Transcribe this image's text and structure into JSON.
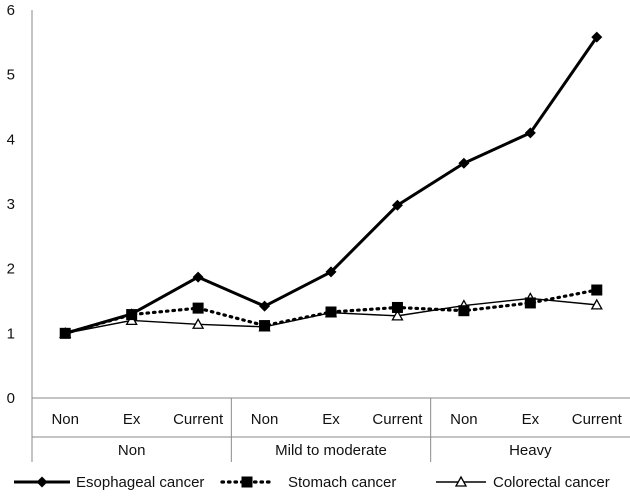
{
  "chart_data": {
    "type": "line",
    "title": "",
    "xlabel": "",
    "ylabel": "",
    "ylim": [
      0,
      6
    ],
    "yticks": [
      "0",
      "1",
      "2",
      "3",
      "4",
      "5",
      "6"
    ],
    "categories": [
      "Non",
      "Ex",
      "Current",
      "Non",
      "Ex",
      "Current",
      "Non",
      "Ex",
      "Current"
    ],
    "groups": [
      {
        "label": "Non",
        "span": 3
      },
      {
        "label": "Mild to moderate",
        "span": 3
      },
      {
        "label": "Heavy",
        "span": 3
      }
    ],
    "grid": false,
    "legend_position": "bottom",
    "series": [
      {
        "name": "Esophageal cancer",
        "marker": "diamond",
        "line": "solid-thick",
        "color": "#000000",
        "values": [
          1.0,
          1.3,
          1.87,
          1.42,
          1.95,
          2.98,
          3.63,
          4.1,
          5.58
        ]
      },
      {
        "name": "Stomach cancer",
        "marker": "square",
        "line": "dotted",
        "color": "#000000",
        "values": [
          1.0,
          1.29,
          1.39,
          1.12,
          1.33,
          1.4,
          1.35,
          1.47,
          1.67
        ]
      },
      {
        "name": "Colorectal cancer",
        "marker": "triangle",
        "line": "solid-thin",
        "color": "#000000",
        "values": [
          1.0,
          1.2,
          1.14,
          1.1,
          1.32,
          1.27,
          1.43,
          1.54,
          1.44
        ]
      }
    ]
  }
}
